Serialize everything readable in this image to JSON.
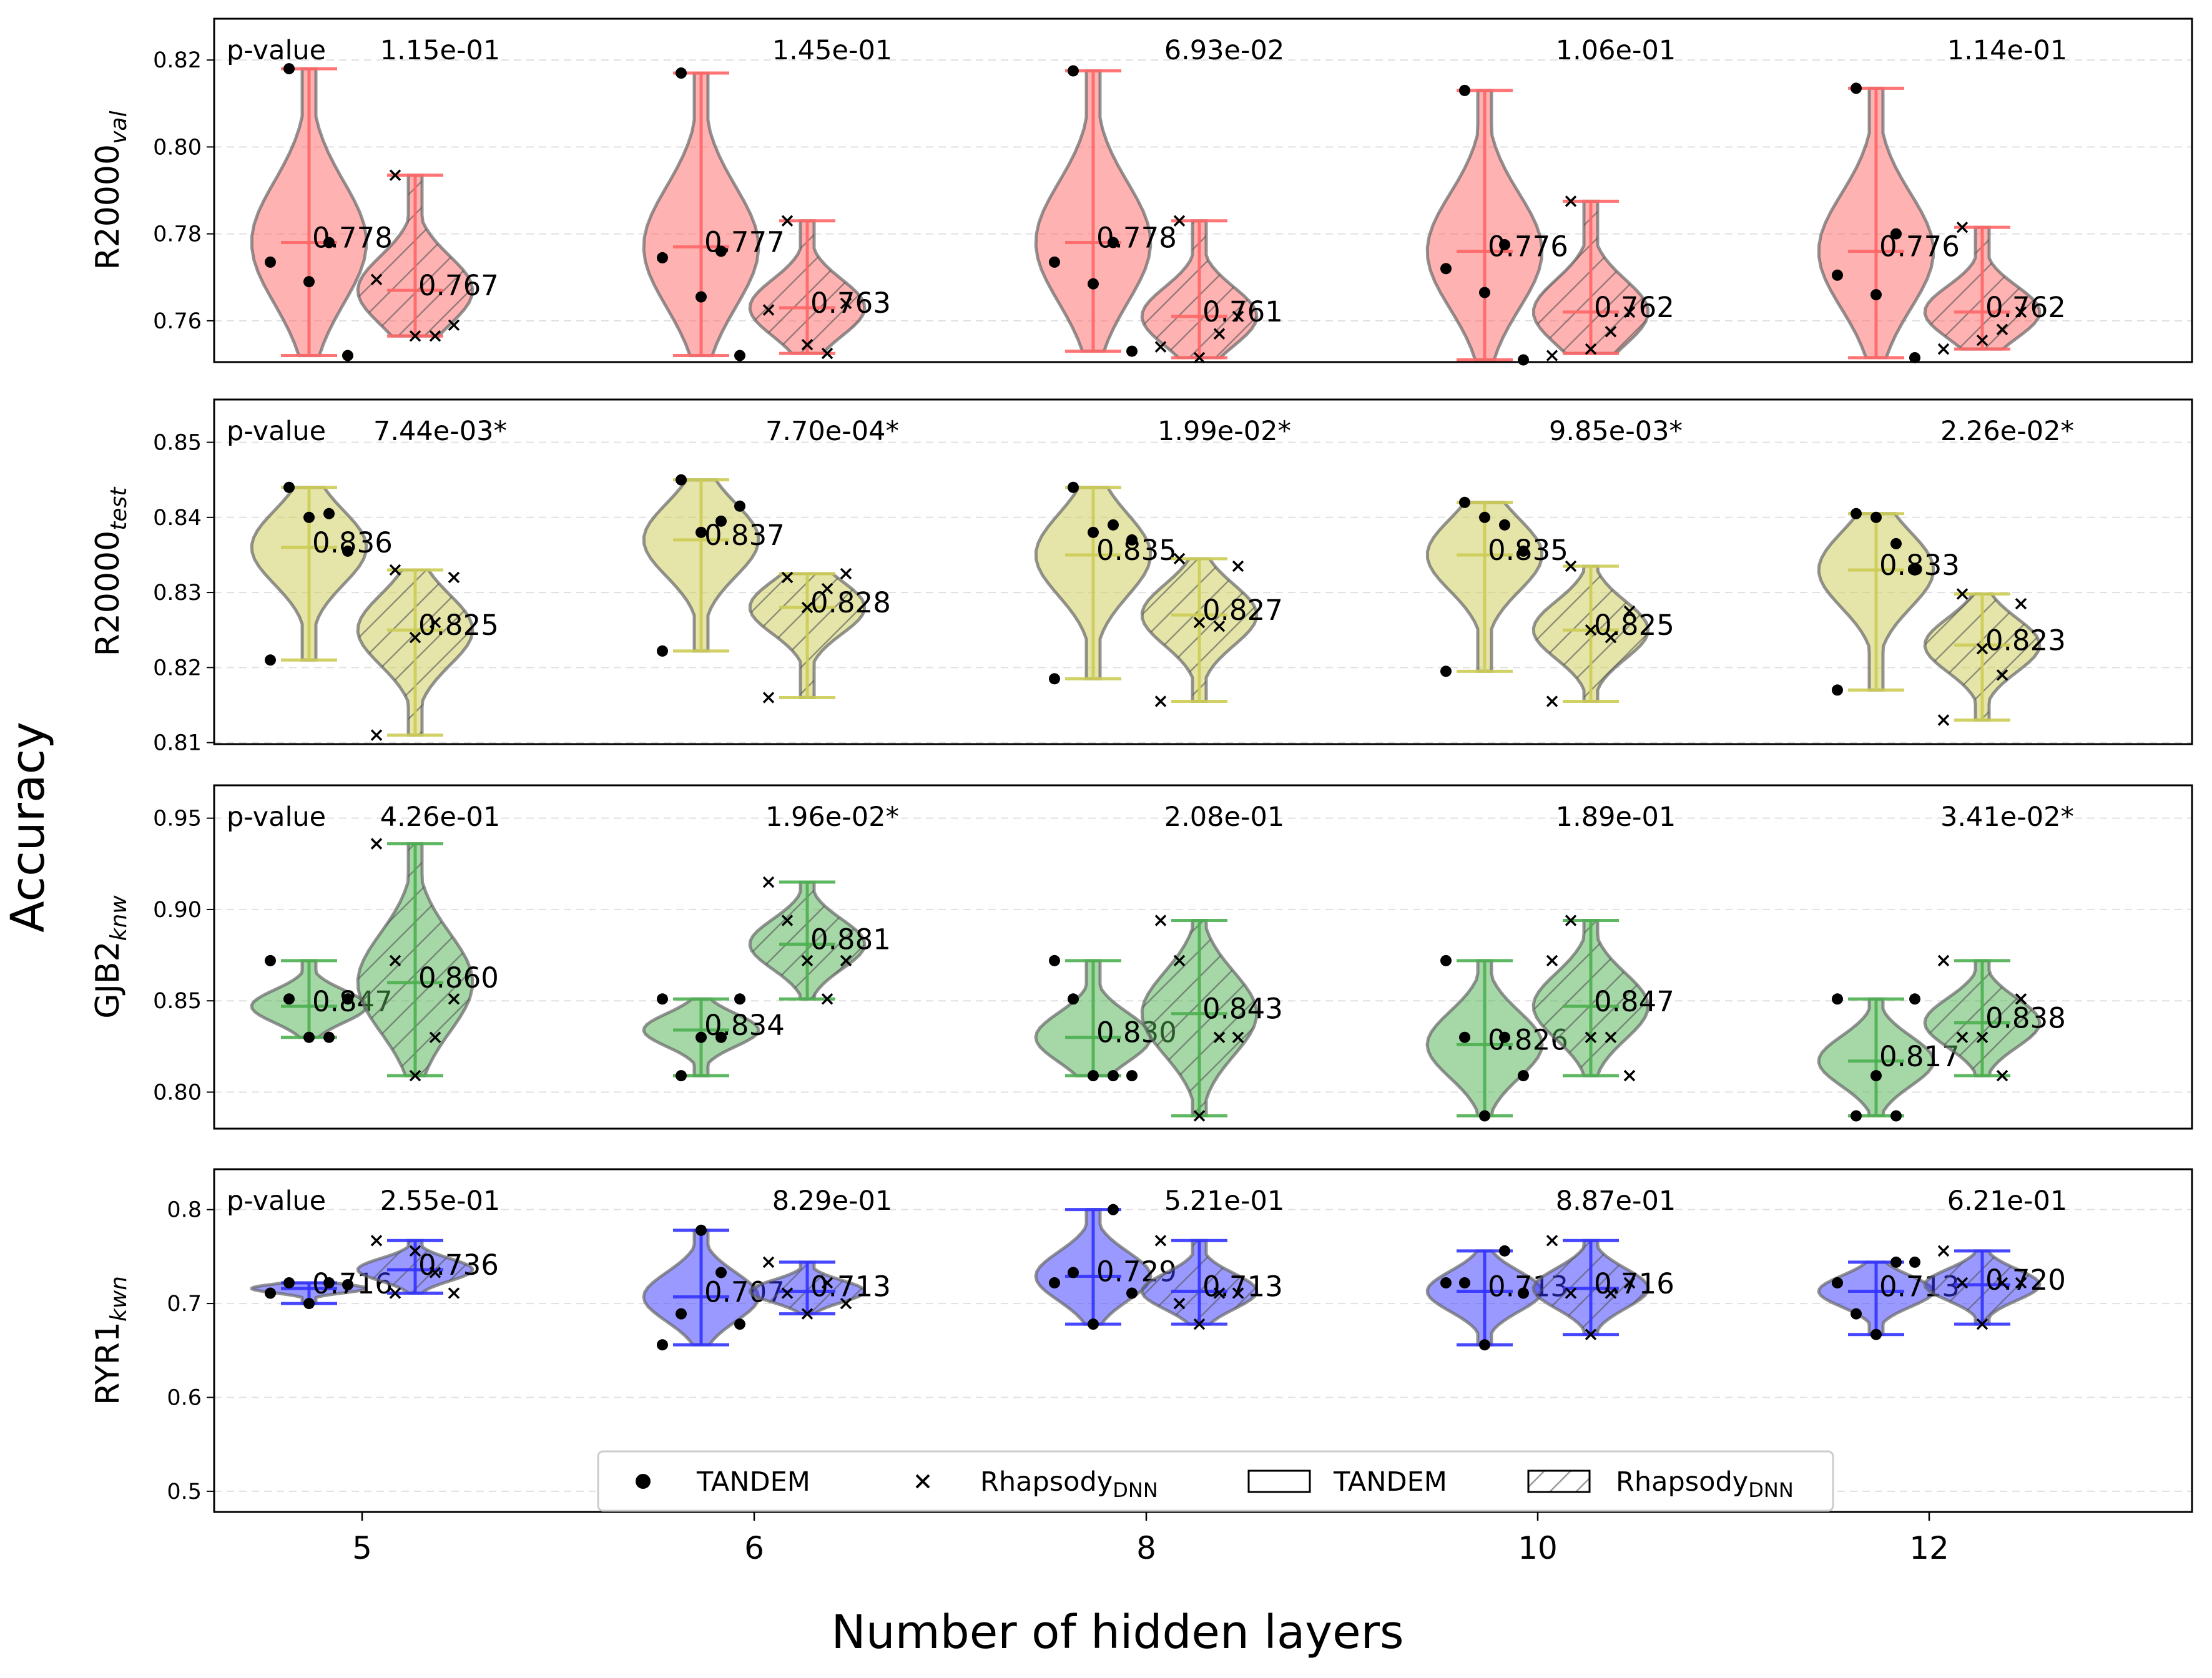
{
  "chart_data": {
    "type": "violin",
    "xlabel": "Number of hidden layers",
    "ylabel": "Accuracy",
    "categories": [
      "5",
      "6",
      "8",
      "10",
      "12"
    ],
    "pvalue_label": "p-value",
    "colors": {
      "R20000val": "#ff6666",
      "R20000test": "#cccc55",
      "GJB2knw": "#4caf50",
      "RYR1kwn": "#3333ff"
    },
    "legend": {
      "placement": "bottom-center",
      "entries": [
        "TANDEM",
        "Rhapsody",
        "TANDEM",
        "Rhapsody"
      ],
      "subscripts": [
        "",
        "DNN",
        "",
        "DNN"
      ]
    },
    "panels": [
      {
        "ylabel": "R20000",
        "ylabel_sub": "val",
        "color": "#ff6666",
        "ylim": [
          0.7505,
          0.8295
        ],
        "yticks": [
          0.76,
          0.78,
          0.8,
          0.82
        ],
        "tick_labels": [
          "0.76",
          "0.78",
          "0.80",
          "0.82"
        ],
        "pvalues": [
          "1.15e-01",
          "1.45e-01",
          "6.93e-02",
          "1.06e-01",
          "1.14e-01"
        ],
        "groups": [
          {
            "tandem": {
              "mean": 0.778,
              "label": "0.778",
              "min": 0.752,
              "max": 0.818,
              "points": [
                0.7735,
                0.818,
                0.769,
                0.778,
                0.752
              ]
            },
            "rhapsody": {
              "mean": 0.767,
              "label": "0.767",
              "min": 0.7565,
              "max": 0.7935,
              "points": [
                0.7695,
                0.7935,
                0.7565,
                0.7565,
                0.759
              ]
            }
          },
          {
            "tandem": {
              "mean": 0.777,
              "label": "0.777",
              "min": 0.752,
              "max": 0.817,
              "points": [
                0.7745,
                0.817,
                0.7655,
                0.776,
                0.752
              ]
            },
            "rhapsody": {
              "mean": 0.763,
              "label": "0.763",
              "min": 0.7525,
              "max": 0.783,
              "points": [
                0.7625,
                0.783,
                0.7545,
                0.7525,
                0.764
              ]
            }
          },
          {
            "tandem": {
              "mean": 0.778,
              "label": "0.778",
              "min": 0.753,
              "max": 0.8175,
              "points": [
                0.7735,
                0.8175,
                0.7685,
                0.778,
                0.753
              ]
            },
            "rhapsody": {
              "mean": 0.761,
              "label": "0.761",
              "min": 0.7515,
              "max": 0.783,
              "points": [
                0.754,
                0.783,
                0.7515,
                0.757,
                0.761
              ]
            }
          },
          {
            "tandem": {
              "mean": 0.776,
              "label": "0.776",
              "min": 0.751,
              "max": 0.813,
              "points": [
                0.772,
                0.813,
                0.7665,
                0.7775,
                0.751
              ]
            },
            "rhapsody": {
              "mean": 0.762,
              "label": "0.762",
              "min": 0.7525,
              "max": 0.7875,
              "points": [
                0.752,
                0.7875,
                0.7535,
                0.7575,
                0.762
              ]
            }
          },
          {
            "tandem": {
              "mean": 0.776,
              "label": "0.776",
              "min": 0.7515,
              "max": 0.8135,
              "points": [
                0.7705,
                0.8135,
                0.766,
                0.78,
                0.7515
              ]
            },
            "rhapsody": {
              "mean": 0.762,
              "label": "0.762",
              "min": 0.7535,
              "max": 0.7815,
              "points": [
                0.7535,
                0.7815,
                0.7555,
                0.758,
                0.762
              ]
            }
          }
        ]
      },
      {
        "ylabel": "R20000",
        "ylabel_sub": "test",
        "color": "#cccc55",
        "ylim": [
          0.8098,
          0.8557
        ],
        "yticks": [
          0.81,
          0.82,
          0.83,
          0.84,
          0.85
        ],
        "tick_labels": [
          "0.81",
          "0.82",
          "0.83",
          "0.84",
          "0.85"
        ],
        "pvalues": [
          "7.44e-03*",
          "7.70e-04*",
          "1.99e-02*",
          "9.85e-03*",
          "2.26e-02*"
        ],
        "groups": [
          {
            "tandem": {
              "mean": 0.836,
              "label": "0.836",
              "min": 0.821,
              "max": 0.844,
              "points": [
                0.821,
                0.844,
                0.84,
                0.8405,
                0.8355
              ]
            },
            "rhapsody": {
              "mean": 0.825,
              "label": "0.825",
              "min": 0.811,
              "max": 0.833,
              "points": [
                0.811,
                0.833,
                0.824,
                0.826,
                0.832
              ]
            }
          },
          {
            "tandem": {
              "mean": 0.837,
              "label": "0.837",
              "min": 0.8222,
              "max": 0.845,
              "points": [
                0.8222,
                0.845,
                0.838,
                0.8395,
                0.8415
              ]
            },
            "rhapsody": {
              "mean": 0.828,
              "label": "0.828",
              "min": 0.816,
              "max": 0.8325,
              "points": [
                0.816,
                0.832,
                0.828,
                0.8305,
                0.8325
              ]
            }
          },
          {
            "tandem": {
              "mean": 0.835,
              "label": "0.835",
              "min": 0.8185,
              "max": 0.844,
              "points": [
                0.8185,
                0.844,
                0.838,
                0.839,
                0.837
              ]
            },
            "rhapsody": {
              "mean": 0.827,
              "label": "0.827",
              "min": 0.8155,
              "max": 0.8345,
              "points": [
                0.8155,
                0.8345,
                0.826,
                0.8255,
                0.8335
              ]
            }
          },
          {
            "tandem": {
              "mean": 0.835,
              "label": "0.835",
              "min": 0.8195,
              "max": 0.842,
              "points": [
                0.8195,
                0.842,
                0.84,
                0.839,
                0.8355
              ]
            },
            "rhapsody": {
              "mean": 0.825,
              "label": "0.825",
              "min": 0.8155,
              "max": 0.8335,
              "points": [
                0.8155,
                0.8335,
                0.825,
                0.824,
                0.8275
              ]
            }
          },
          {
            "tandem": {
              "mean": 0.833,
              "label": "0.833",
              "min": 0.817,
              "max": 0.8405,
              "points": [
                0.817,
                0.8405,
                0.84,
                0.8365,
                0.833
              ]
            },
            "rhapsody": {
              "mean": 0.823,
              "label": "0.823",
              "min": 0.813,
              "max": 0.8298,
              "points": [
                0.813,
                0.8298,
                0.8225,
                0.819,
                0.8285
              ]
            }
          }
        ]
      },
      {
        "ylabel": "GJB2",
        "ylabel_sub": "knw",
        "color": "#4caf50",
        "ylim": [
          0.78,
          0.968
        ],
        "yticks": [
          0.8,
          0.85,
          0.9,
          0.95
        ],
        "tick_labels": [
          "0.80",
          "0.85",
          "0.90",
          "0.95"
        ],
        "pvalues": [
          "4.26e-01",
          "1.96e-02*",
          "2.08e-01",
          "1.89e-01",
          "3.41e-02*"
        ],
        "groups": [
          {
            "tandem": {
              "mean": 0.847,
              "label": "0.847",
              "min": 0.83,
              "max": 0.872,
              "points": [
                0.872,
                0.851,
                0.83,
                0.83,
                0.851
              ]
            },
            "rhapsody": {
              "mean": 0.86,
              "label": "0.860",
              "min": 0.809,
              "max": 0.936,
              "points": [
                0.936,
                0.872,
                0.809,
                0.83,
                0.851
              ]
            }
          },
          {
            "tandem": {
              "mean": 0.834,
              "label": "0.834",
              "min": 0.809,
              "max": 0.851,
              "points": [
                0.851,
                0.809,
                0.83,
                0.83,
                0.851
              ]
            },
            "rhapsody": {
              "mean": 0.881,
              "label": "0.881",
              "min": 0.851,
              "max": 0.915,
              "points": [
                0.915,
                0.894,
                0.872,
                0.851,
                0.872
              ]
            }
          },
          {
            "tandem": {
              "mean": 0.83,
              "label": "0.830",
              "min": 0.809,
              "max": 0.872,
              "points": [
                0.872,
                0.851,
                0.809,
                0.809,
                0.809
              ]
            },
            "rhapsody": {
              "mean": 0.843,
              "label": "0.843",
              "min": 0.787,
              "max": 0.894,
              "points": [
                0.894,
                0.872,
                0.787,
                0.83,
                0.83
              ]
            }
          },
          {
            "tandem": {
              "mean": 0.826,
              "label": "0.826",
              "min": 0.787,
              "max": 0.872,
              "points": [
                0.872,
                0.83,
                0.787,
                0.83,
                0.809
              ]
            },
            "rhapsody": {
              "mean": 0.847,
              "label": "0.847",
              "min": 0.809,
              "max": 0.894,
              "points": [
                0.872,
                0.894,
                0.83,
                0.83,
                0.809
              ]
            }
          },
          {
            "tandem": {
              "mean": 0.817,
              "label": "0.817",
              "min": 0.787,
              "max": 0.851,
              "points": [
                0.851,
                0.787,
                0.809,
                0.787,
                0.851
              ]
            },
            "rhapsody": {
              "mean": 0.838,
              "label": "0.838",
              "min": 0.809,
              "max": 0.872,
              "points": [
                0.872,
                0.83,
                0.83,
                0.809,
                0.851
              ]
            }
          }
        ]
      },
      {
        "ylabel": "RYR1",
        "ylabel_sub": "kwn",
        "color": "#3333ff",
        "ylim": [
          0.478,
          0.843
        ],
        "yticks": [
          0.5,
          0.6,
          0.7,
          0.8
        ],
        "tick_labels": [
          "0.5",
          "0.6",
          "0.7",
          "0.8"
        ],
        "pvalues": [
          "2.55e-01",
          "8.29e-01",
          "5.21e-01",
          "8.87e-01",
          "6.21e-01"
        ],
        "groups": [
          {
            "tandem": {
              "mean": 0.716,
              "label": "0.716",
              "min": 0.7,
              "max": 0.722,
              "points": [
                0.711,
                0.722,
                0.7,
                0.722,
                0.72
              ]
            },
            "rhapsody": {
              "mean": 0.736,
              "label": "0.736",
              "min": 0.711,
              "max": 0.767,
              "points": [
                0.767,
                0.711,
                0.756,
                0.733,
                0.711
              ]
            }
          },
          {
            "tandem": {
              "mean": 0.707,
              "label": "0.707",
              "min": 0.656,
              "max": 0.778,
              "points": [
                0.656,
                0.689,
                0.778,
                0.733,
                0.678
              ]
            },
            "rhapsody": {
              "mean": 0.713,
              "label": "0.713",
              "min": 0.689,
              "max": 0.744,
              "points": [
                0.744,
                0.711,
                0.689,
                0.722,
                0.7
              ]
            }
          },
          {
            "tandem": {
              "mean": 0.729,
              "label": "0.729",
              "min": 0.678,
              "max": 0.8,
              "points": [
                0.722,
                0.733,
                0.678,
                0.8,
                0.711
              ]
            },
            "rhapsody": {
              "mean": 0.713,
              "label": "0.713",
              "min": 0.678,
              "max": 0.767,
              "points": [
                0.767,
                0.7,
                0.678,
                0.711,
                0.711
              ]
            }
          },
          {
            "tandem": {
              "mean": 0.713,
              "label": "0.713",
              "min": 0.656,
              "max": 0.756,
              "points": [
                0.722,
                0.722,
                0.656,
                0.756,
                0.711
              ]
            },
            "rhapsody": {
              "mean": 0.716,
              "label": "0.716",
              "min": 0.667,
              "max": 0.767,
              "points": [
                0.767,
                0.711,
                0.667,
                0.711,
                0.722
              ]
            }
          },
          {
            "tandem": {
              "mean": 0.713,
              "label": "0.713",
              "min": 0.667,
              "max": 0.744,
              "points": [
                0.722,
                0.689,
                0.667,
                0.744,
                0.744
              ]
            },
            "rhapsody": {
              "mean": 0.72,
              "label": "0.720",
              "min": 0.678,
              "max": 0.756,
              "points": [
                0.756,
                0.722,
                0.678,
                0.722,
                0.722
              ]
            }
          }
        ]
      }
    ]
  }
}
